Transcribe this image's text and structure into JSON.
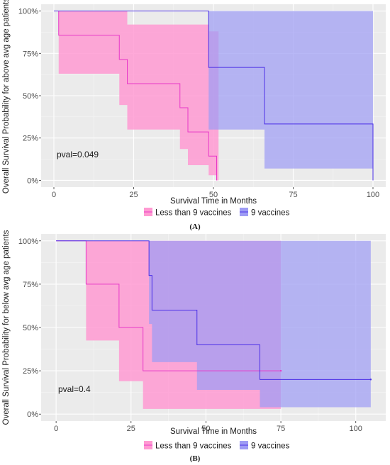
{
  "chart_data": [
    {
      "type": "line",
      "subtype": "kaplan-meier",
      "caption": "(A)",
      "xlabel": "Survival  Time in Months",
      "ylabel": "Overall Survival Probability for above avg age patients",
      "xlim": [
        -4,
        104
      ],
      "ylim": [
        -0.04,
        1.04
      ],
      "xticks": [
        0,
        25,
        50,
        75,
        100
      ],
      "yticks": [
        0,
        0.25,
        0.5,
        0.75,
        1.0
      ],
      "ytick_labels": [
        "0%",
        "25%",
        "50%",
        "75%",
        "100%"
      ],
      "pval_label": "pval=0.049",
      "grid": true,
      "legend_position": "bottom",
      "series": [
        {
          "name": "Less than 9 vaccines",
          "color": "#e838c8",
          "band_color": "#ff9ad2",
          "steps": [
            [
              0,
              1.0
            ],
            [
              1.5,
              0.857
            ],
            [
              20.5,
              0.714
            ],
            [
              23,
              0.571
            ],
            [
              39.5,
              0.429
            ],
            [
              42,
              0.286
            ],
            [
              48.5,
              0.143
            ],
            [
              51,
              0.0
            ]
          ],
          "ci": [
            [
              0,
              1.0,
              1.0
            ],
            [
              1.5,
              1.0,
              0.63
            ],
            [
              20.5,
              1.0,
              0.445
            ],
            [
              23,
              0.92,
              0.3
            ],
            [
              39.5,
              0.92,
              0.185
            ],
            [
              42,
              0.92,
              0.09
            ],
            [
              48.5,
              0.88,
              0.03
            ],
            [
              51,
              0.88,
              0.0
            ],
            [
              51.6,
              0.88,
              0.0
            ]
          ]
        },
        {
          "name": "9 vaccines",
          "color": "#4b2fe6",
          "band_color": "#9e9cf4",
          "steps": [
            [
              0,
              1.0
            ],
            [
              48.5,
              0.667
            ],
            [
              66,
              0.333
            ],
            [
              100,
              0.0
            ]
          ],
          "ci": [
            [
              0,
              1.0,
              1.0
            ],
            [
              48.5,
              1.0,
              0.3
            ],
            [
              66,
              1.0,
              0.07
            ],
            [
              100,
              1.0,
              0.0
            ]
          ]
        }
      ]
    },
    {
      "type": "line",
      "subtype": "kaplan-meier",
      "caption": "(B)",
      "xlabel": "Survival  Time in Months",
      "ylabel": "Overall Survival Probability for below avg age patients",
      "xlim": [
        -5,
        110
      ],
      "ylim": [
        -0.04,
        1.04
      ],
      "xticks": [
        0,
        25,
        50,
        75,
        100
      ],
      "yticks": [
        0,
        0.25,
        0.5,
        0.75,
        1.0
      ],
      "ytick_labels": [
        "0%",
        "25%",
        "50%",
        "75%",
        "100%"
      ],
      "pval_label": "pval=0.4",
      "grid": true,
      "legend_position": "bottom",
      "series": [
        {
          "name": "Less than 9 vaccines",
          "color": "#e838c8",
          "band_color": "#ff9ad2",
          "steps": [
            [
              0,
              1.0
            ],
            [
              10,
              0.75
            ],
            [
              21,
              0.5
            ],
            [
              29,
              0.25
            ],
            [
              75,
              0.25
            ]
          ],
          "censor": [
            [
              75,
              0.25
            ]
          ],
          "ci": [
            [
              0,
              1.0,
              1.0
            ],
            [
              10,
              1.0,
              0.425
            ],
            [
              21,
              1.0,
              0.19
            ],
            [
              29,
              1.0,
              0.03
            ],
            [
              75,
              1.0,
              0.03
            ]
          ]
        },
        {
          "name": "9 vaccines",
          "color": "#4b2fe6",
          "band_color": "#9e9cf4",
          "steps": [
            [
              0,
              1.0
            ],
            [
              31,
              0.8
            ],
            [
              32,
              0.6
            ],
            [
              47,
              0.4
            ],
            [
              68,
              0.2
            ],
            [
              105,
              0.2
            ]
          ],
          "censor": [
            [
              105,
              0.2
            ]
          ],
          "ci": [
            [
              0,
              1.0,
              1.0
            ],
            [
              31,
              1.0,
              0.52
            ],
            [
              32,
              1.0,
              0.3
            ],
            [
              47,
              1.0,
              0.14
            ],
            [
              68,
              1.0,
              0.04
            ],
            [
              105,
              1.0,
              0.04
            ]
          ]
        }
      ]
    }
  ]
}
